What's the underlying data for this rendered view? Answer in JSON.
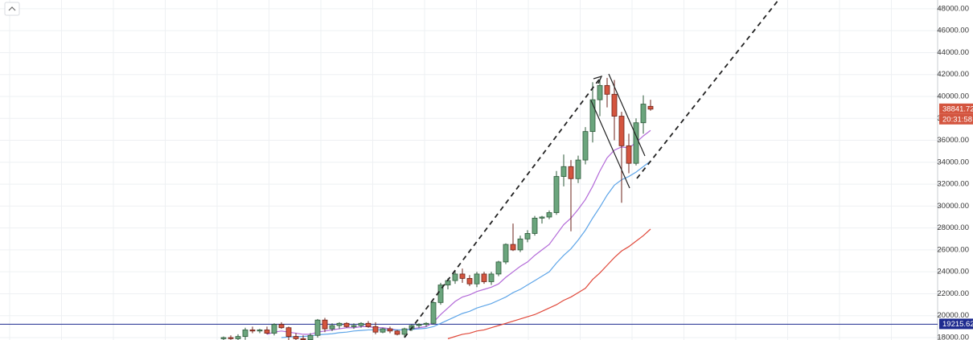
{
  "chart_data": {
    "type": "candlestick",
    "ylim": [
      17780,
      48800
    ],
    "yticks": [
      {
        "value": 18000,
        "label": "18000.00"
      },
      {
        "value": 20000,
        "label": "20000.00"
      },
      {
        "value": 22000,
        "label": "22000.00"
      },
      {
        "value": 24000,
        "label": "24000.00"
      },
      {
        "value": 26000,
        "label": "26000.00"
      },
      {
        "value": 28000,
        "label": "28000.00"
      },
      {
        "value": 30000,
        "label": "30000.00"
      },
      {
        "value": 32000,
        "label": "32000.00"
      },
      {
        "value": 34000,
        "label": "34000.00"
      },
      {
        "value": 36000,
        "label": "36000.00"
      },
      {
        "value": 38000,
        "label": "38000.00"
      },
      {
        "value": 40000,
        "label": "40000.00"
      },
      {
        "value": 42000,
        "label": "42000.00"
      },
      {
        "value": 44000,
        "label": "44000.00"
      },
      {
        "value": 46000,
        "label": "46000.00"
      },
      {
        "value": 48000,
        "label": "48000.00"
      }
    ],
    "grid": true,
    "up_color": "#6ba57d",
    "down_color": "#d4553f",
    "open": [
      17900,
      18000,
      17900,
      18100,
      18700,
      18600,
      18700,
      18400,
      19200,
      18900,
      18100,
      17900,
      17800,
      18200,
      19600,
      18800,
      19100,
      19300,
      19000,
      19100,
      19300,
      19000,
      18500,
      18800,
      18600,
      18300,
      18800,
      19100,
      19200,
      19300,
      21200,
      22800,
      23200,
      23800,
      23400,
      22900,
      23800,
      23100,
      23800,
      24900,
      26500,
      26000,
      27000,
      27500,
      28900,
      29000,
      29400,
      32700,
      33600,
      32500,
      34200,
      36800,
      39700,
      41000,
      40200,
      38200,
      35500,
      33900,
      37600,
      39100
    ],
    "high": [
      18100,
      18200,
      18300,
      18900,
      19000,
      18800,
      19000,
      19300,
      19400,
      19000,
      18400,
      18200,
      18400,
      19700,
      19800,
      19300,
      19400,
      19400,
      19300,
      19400,
      19500,
      19400,
      18900,
      19000,
      18700,
      18900,
      19200,
      19300,
      19400,
      21300,
      23000,
      23400,
      24100,
      24300,
      23700,
      24000,
      24000,
      24000,
      25000,
      26600,
      28400,
      27300,
      27800,
      29100,
      29100,
      29600,
      33200,
      34700,
      34200,
      34600,
      37200,
      41300,
      41600,
      41700,
      41500,
      38600,
      36600,
      38000,
      40100,
      39700
    ],
    "low": [
      17700,
      17800,
      17700,
      17800,
      18400,
      18400,
      18300,
      18200,
      18800,
      17700,
      17600,
      17500,
      17600,
      18000,
      18500,
      18600,
      18800,
      18900,
      18800,
      18900,
      18900,
      18300,
      18400,
      18400,
      18200,
      18000,
      18600,
      18900,
      19000,
      19200,
      21000,
      22400,
      22900,
      23000,
      22700,
      22600,
      22900,
      22800,
      23600,
      24700,
      25900,
      25800,
      26700,
      27300,
      28400,
      28800,
      29200,
      31800,
      27700,
      32100,
      33800,
      35800,
      38200,
      39000,
      36000,
      30300,
      33000,
      33700,
      36600,
      38700
    ],
    "close": [
      18000,
      17900,
      18100,
      18700,
      18600,
      18700,
      18400,
      19200,
      18900,
      18100,
      17900,
      17800,
      18200,
      19600,
      18800,
      19100,
      19300,
      19000,
      19100,
      19300,
      19000,
      18500,
      18800,
      18600,
      18300,
      18800,
      19100,
      19200,
      19300,
      21200,
      22800,
      23200,
      23800,
      23400,
      22900,
      23800,
      23100,
      23800,
      24900,
      26500,
      26000,
      27000,
      27500,
      28900,
      29000,
      29400,
      32700,
      33600,
      32500,
      34200,
      36800,
      39700,
      41000,
      40200,
      38200,
      35500,
      33900,
      37600,
      39300,
      38841.72
    ],
    "series": [
      {
        "color": "#b36ad8",
        "values": [
          null,
          null,
          null,
          null,
          null,
          null,
          18300,
          18500,
          18600,
          18500,
          18400,
          18300,
          18300,
          18500,
          18600,
          18700,
          18800,
          18900,
          18900,
          19000,
          19000,
          18900,
          18900,
          18800,
          18700,
          18700,
          18800,
          18900,
          19000,
          19400,
          20100,
          20700,
          21300,
          21700,
          21900,
          22200,
          22400,
          22600,
          22900,
          23500,
          24000,
          24500,
          24900,
          25500,
          26000,
          26500,
          27400,
          28300,
          28900,
          29700,
          30600,
          31800,
          33200,
          34400,
          35100,
          35400,
          35300,
          35800,
          36400,
          36900
        ]
      },
      {
        "color": "#5ea5e8",
        "values": [
          null,
          null,
          null,
          null,
          null,
          null,
          null,
          null,
          18000,
          18050,
          18100,
          18100,
          18150,
          18250,
          18300,
          18350,
          18450,
          18500,
          18600,
          18650,
          18700,
          18700,
          18700,
          18700,
          18700,
          18700,
          18750,
          18800,
          18850,
          19000,
          19300,
          19600,
          19900,
          20200,
          20400,
          20700,
          20900,
          21100,
          21400,
          21700,
          22100,
          22400,
          22800,
          23200,
          23600,
          24000,
          24800,
          25500,
          26100,
          26900,
          27800,
          28900,
          29900,
          31000,
          31900,
          32400,
          32700,
          33100,
          33600,
          34100
        ]
      },
      {
        "color": "#e0493b",
        "values": [
          null,
          null,
          null,
          null,
          null,
          null,
          null,
          null,
          null,
          null,
          null,
          null,
          null,
          null,
          null,
          null,
          null,
          null,
          null,
          null,
          null,
          null,
          null,
          null,
          null,
          null,
          null,
          null,
          null,
          null,
          null,
          17900,
          18100,
          18300,
          18400,
          18600,
          18700,
          18900,
          19100,
          19300,
          19500,
          19700,
          19900,
          20100,
          20400,
          20700,
          21000,
          21400,
          21700,
          22100,
          22500,
          23300,
          23900,
          24600,
          25300,
          25900,
          26300,
          26800,
          27300,
          27900
        ]
      }
    ],
    "last_price": 38841.72,
    "countdown": "20:31:58",
    "hline": 19215.62
  }
}
